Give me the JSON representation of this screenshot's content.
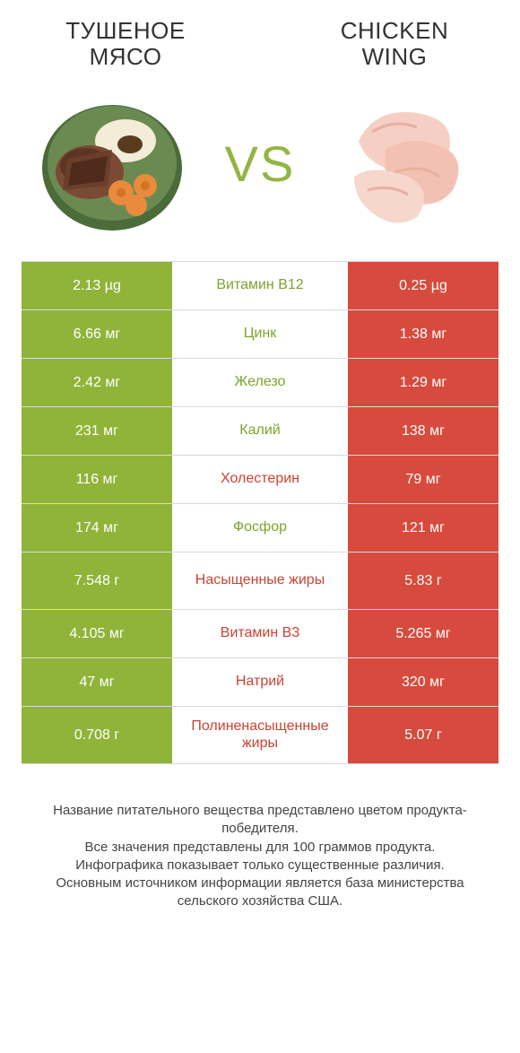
{
  "colors": {
    "left_bar": "#8fb439",
    "right_bar": "#d64b3d",
    "label_left_win": "#7ea32e",
    "label_right_win": "#c94335",
    "vs": "#93b543",
    "row_border": "#d9d9d9",
    "bg": "#ffffff",
    "text": "#333333"
  },
  "titles": {
    "left": "ТУШЕНОЕ МЯСО",
    "right": "CHICKEN WING",
    "vs": "VS"
  },
  "rows": [
    {
      "label": "Витамин B12",
      "left": "2.13 µg",
      "right": "0.25 µg",
      "winner": "left",
      "tall": false
    },
    {
      "label": "Цинк",
      "left": "6.66 мг",
      "right": "1.38 мг",
      "winner": "left",
      "tall": false
    },
    {
      "label": "Железо",
      "left": "2.42 мг",
      "right": "1.29 мг",
      "winner": "left",
      "tall": false
    },
    {
      "label": "Калий",
      "left": "231 мг",
      "right": "138 мг",
      "winner": "left",
      "tall": false
    },
    {
      "label": "Холестерин",
      "left": "116 мг",
      "right": "79 мг",
      "winner": "right",
      "tall": false
    },
    {
      "label": "Фосфор",
      "left": "174 мг",
      "right": "121 мг",
      "winner": "left",
      "tall": false
    },
    {
      "label": "Насыщенные жиры",
      "left": "7.548 г",
      "right": "5.83 г",
      "winner": "right",
      "tall": true
    },
    {
      "label": "Витамин B3",
      "left": "4.105 мг",
      "right": "5.265 мг",
      "winner": "right",
      "tall": false
    },
    {
      "label": "Натрий",
      "left": "47 мг",
      "right": "320 мг",
      "winner": "right",
      "tall": false
    },
    {
      "label": "Полиненасыщенные жиры",
      "left": "0.708 г",
      "right": "5.07 г",
      "winner": "right",
      "tall": true
    }
  ],
  "footer": {
    "l1": "Название питательного вещества представлено цветом продукта-победителя.",
    "l2": "Все значения представлены для 100 граммов продукта.",
    "l3": "Инфографика показывает только существенные различия.",
    "l4": "Основным источником информации является база министерства сельского хозяйства США."
  }
}
